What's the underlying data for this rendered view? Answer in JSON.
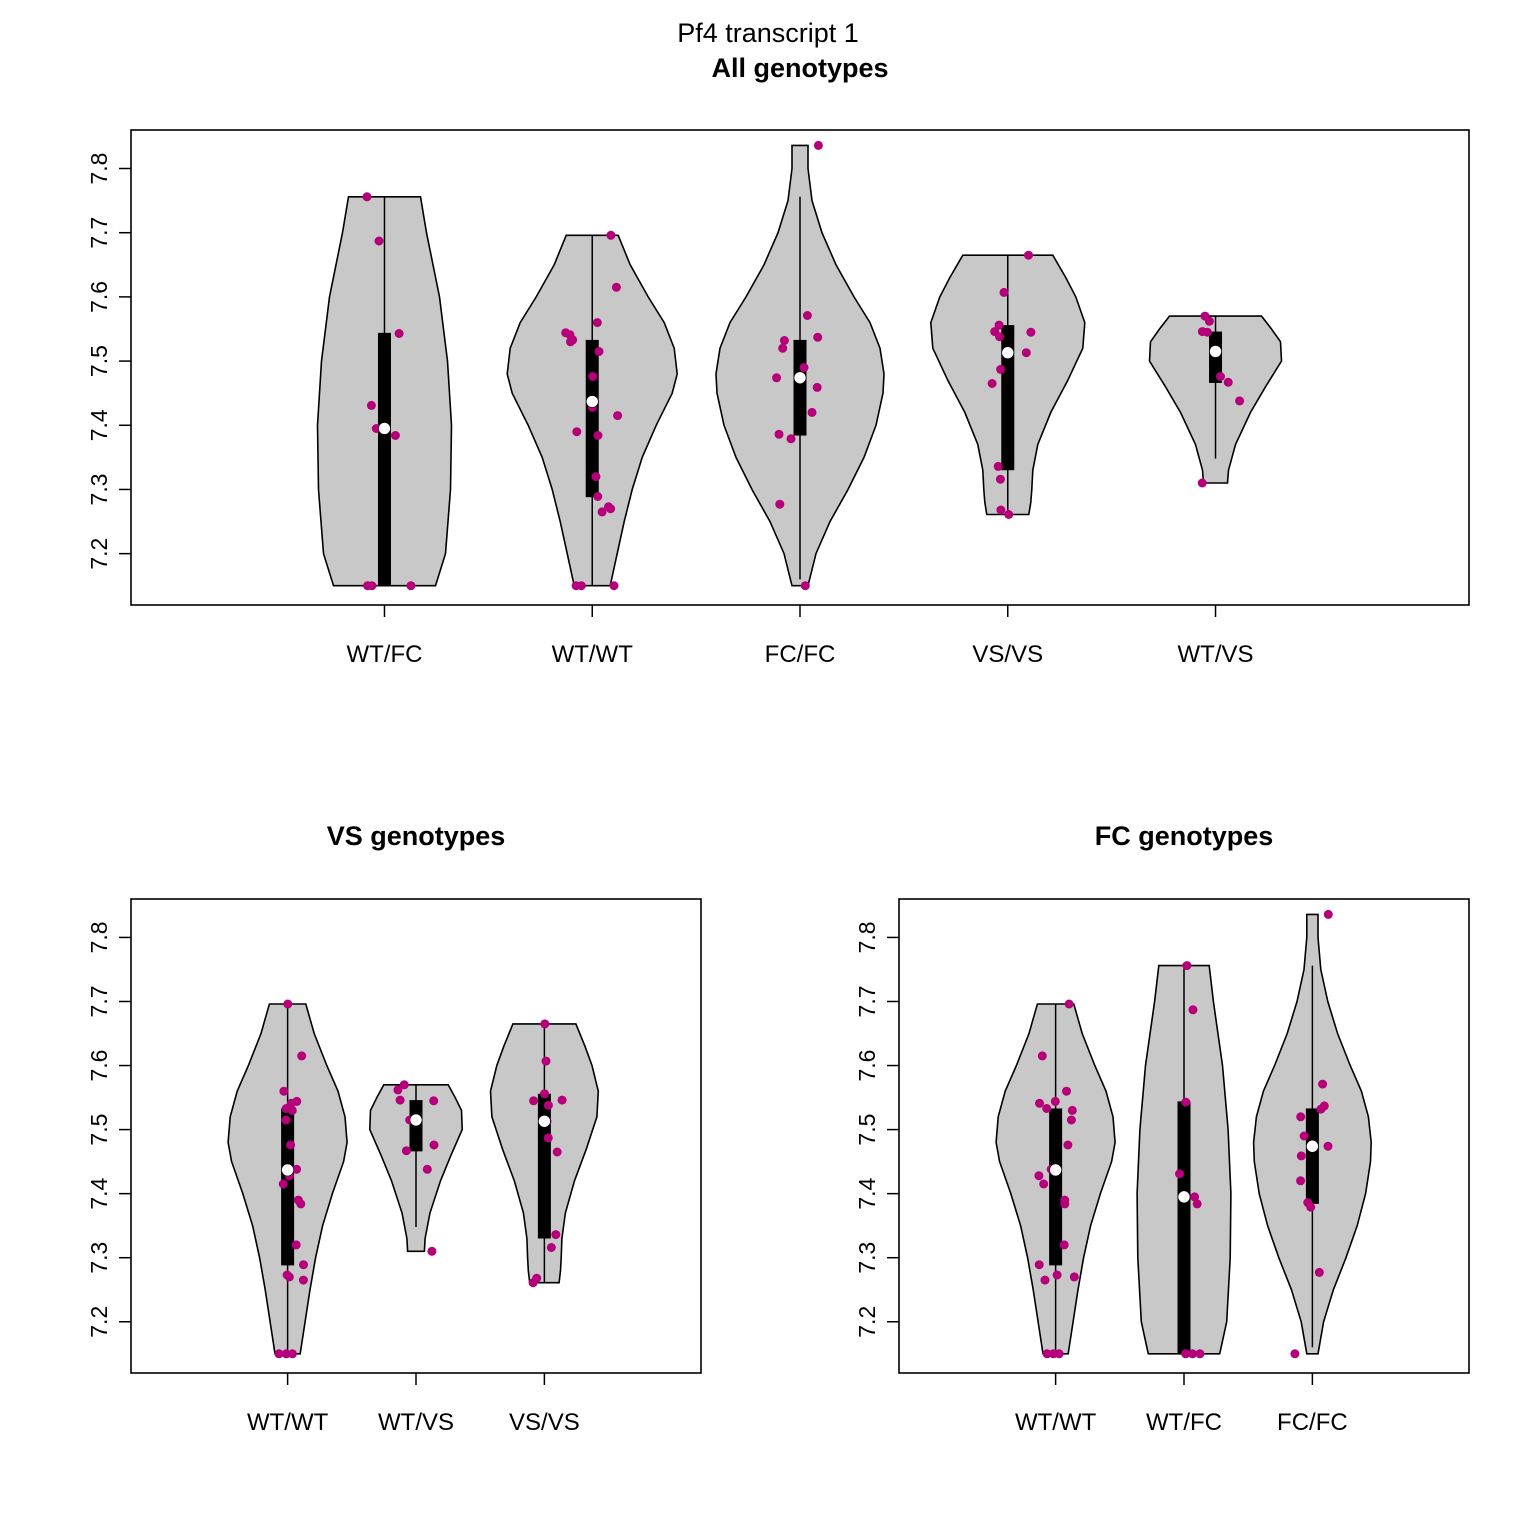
{
  "figure_title": "Pf4 transcript 1",
  "colors": {
    "violin_fill": "#c8c8c8",
    "violin_stroke": "#000000",
    "point": "#b5007a",
    "median": "#ffffff",
    "box": "#000000"
  },
  "chart_data": [
    {
      "type": "violin",
      "title": "All genotypes",
      "ylim": [
        7.12,
        7.86
      ],
      "yticks": [
        "7.2",
        "7.3",
        "7.4",
        "7.5",
        "7.6",
        "7.7",
        "7.8"
      ],
      "categories": [
        "WT/FC",
        "WT/WT",
        "FC/FC",
        "VS/VS",
        "WT/VS"
      ],
      "groups": [
        {
          "name": "WT/FC",
          "min": 7.15,
          "max": 7.756,
          "q1": 7.15,
          "median": 7.395,
          "q3": 7.544,
          "wlo": 7.15,
          "whi": 7.756,
          "profile": [
            [
              7.15,
              0.51
            ],
            [
              7.2,
              0.61
            ],
            [
              7.3,
              0.66
            ],
            [
              7.4,
              0.67
            ],
            [
              7.5,
              0.63
            ],
            [
              7.6,
              0.55
            ],
            [
              7.7,
              0.42
            ],
            [
              7.756,
              0.36
            ]
          ],
          "points": [
            7.756,
            7.687,
            7.543,
            7.431,
            7.395,
            7.384,
            7.15,
            7.15,
            7.15
          ]
        },
        {
          "name": "WT/WT",
          "min": 7.15,
          "max": 7.696,
          "q1": 7.288,
          "median": 7.437,
          "q3": 7.533,
          "wlo": 7.15,
          "whi": 7.696,
          "profile": [
            [
              7.15,
              0.18
            ],
            [
              7.2,
              0.25
            ],
            [
              7.25,
              0.32
            ],
            [
              7.3,
              0.4
            ],
            [
              7.35,
              0.5
            ],
            [
              7.4,
              0.64
            ],
            [
              7.45,
              0.8
            ],
            [
              7.48,
              0.85
            ],
            [
              7.52,
              0.82
            ],
            [
              7.56,
              0.72
            ],
            [
              7.6,
              0.56
            ],
            [
              7.65,
              0.38
            ],
            [
              7.696,
              0.26
            ]
          ],
          "points": [
            7.696,
            7.615,
            7.56,
            7.544,
            7.541,
            7.533,
            7.53,
            7.515,
            7.476,
            7.438,
            7.428,
            7.415,
            7.39,
            7.384,
            7.32,
            7.289,
            7.27,
            7.273,
            7.265,
            7.15,
            7.15,
            7.15
          ]
        },
        {
          "name": "FC/FC",
          "min": 7.15,
          "max": 7.836,
          "q1": 7.384,
          "median": 7.474,
          "q3": 7.533,
          "wlo": 7.16,
          "whi": 7.756,
          "profile": [
            [
              7.15,
              0.08
            ],
            [
              7.2,
              0.16
            ],
            [
              7.25,
              0.3
            ],
            [
              7.3,
              0.48
            ],
            [
              7.35,
              0.64
            ],
            [
              7.4,
              0.76
            ],
            [
              7.45,
              0.83
            ],
            [
              7.48,
              0.84
            ],
            [
              7.52,
              0.8
            ],
            [
              7.56,
              0.7
            ],
            [
              7.6,
              0.54
            ],
            [
              7.65,
              0.36
            ],
            [
              7.7,
              0.22
            ],
            [
              7.75,
              0.12
            ],
            [
              7.8,
              0.08
            ],
            [
              7.836,
              0.08
            ]
          ],
          "points": [
            7.836,
            7.571,
            7.537,
            7.532,
            7.52,
            7.49,
            7.474,
            7.459,
            7.42,
            7.386,
            7.379,
            7.277,
            7.15
          ]
        },
        {
          "name": "VS/VS",
          "min": 7.261,
          "max": 7.665,
          "q1": 7.33,
          "median": 7.513,
          "q3": 7.556,
          "wlo": 7.261,
          "whi": 7.665,
          "profile": [
            [
              7.261,
              0.21
            ],
            [
              7.28,
              0.23
            ],
            [
              7.3,
              0.24
            ],
            [
              7.33,
              0.25
            ],
            [
              7.37,
              0.3
            ],
            [
              7.42,
              0.43
            ],
            [
              7.47,
              0.6
            ],
            [
              7.52,
              0.75
            ],
            [
              7.56,
              0.77
            ],
            [
              7.6,
              0.68
            ],
            [
              7.63,
              0.58
            ],
            [
              7.665,
              0.45
            ]
          ],
          "points": [
            7.665,
            7.607,
            7.556,
            7.546,
            7.545,
            7.538,
            7.513,
            7.487,
            7.465,
            7.336,
            7.316,
            7.268,
            7.261
          ]
        },
        {
          "name": "WT/VS",
          "min": 7.31,
          "max": 7.57,
          "q1": 7.466,
          "median": 7.515,
          "q3": 7.546,
          "wlo": 7.348,
          "whi": 7.57,
          "profile": [
            [
              7.31,
              0.12
            ],
            [
              7.33,
              0.13
            ],
            [
              7.37,
              0.2
            ],
            [
              7.42,
              0.35
            ],
            [
              7.46,
              0.5
            ],
            [
              7.5,
              0.66
            ],
            [
              7.53,
              0.65
            ],
            [
              7.55,
              0.56
            ],
            [
              7.57,
              0.46
            ]
          ],
          "points": [
            7.57,
            7.562,
            7.546,
            7.545,
            7.515,
            7.476,
            7.467,
            7.438,
            7.31
          ]
        }
      ]
    },
    {
      "type": "violin",
      "title": "VS genotypes",
      "ylim": [
        7.12,
        7.86
      ],
      "yticks": [
        "7.2",
        "7.3",
        "7.4",
        "7.5",
        "7.6",
        "7.7",
        "7.8"
      ],
      "categories": [
        "WT/WT",
        "WT/VS",
        "VS/VS"
      ],
      "groups": [
        {
          "name": "WT/WT",
          "min": 7.15,
          "max": 7.696,
          "q1": 7.288,
          "median": 7.437,
          "q3": 7.533,
          "wlo": 7.15,
          "whi": 7.696,
          "profile": [
            [
              7.15,
              0.18
            ],
            [
              7.2,
              0.25
            ],
            [
              7.25,
              0.32
            ],
            [
              7.3,
              0.4
            ],
            [
              7.35,
              0.5
            ],
            [
              7.4,
              0.64
            ],
            [
              7.45,
              0.8
            ],
            [
              7.48,
              0.85
            ],
            [
              7.52,
              0.82
            ],
            [
              7.56,
              0.72
            ],
            [
              7.6,
              0.56
            ],
            [
              7.65,
              0.38
            ],
            [
              7.696,
              0.26
            ]
          ],
          "points": [
            7.696,
            7.615,
            7.56,
            7.544,
            7.541,
            7.533,
            7.53,
            7.515,
            7.476,
            7.438,
            7.428,
            7.415,
            7.39,
            7.384,
            7.32,
            7.289,
            7.27,
            7.273,
            7.265,
            7.15,
            7.15,
            7.15
          ]
        },
        {
          "name": "WT/VS",
          "min": 7.31,
          "max": 7.57,
          "q1": 7.466,
          "median": 7.515,
          "q3": 7.546,
          "wlo": 7.348,
          "whi": 7.57,
          "profile": [
            [
              7.31,
              0.12
            ],
            [
              7.33,
              0.13
            ],
            [
              7.37,
              0.2
            ],
            [
              7.42,
              0.35
            ],
            [
              7.46,
              0.5
            ],
            [
              7.5,
              0.66
            ],
            [
              7.53,
              0.65
            ],
            [
              7.55,
              0.56
            ],
            [
              7.57,
              0.46
            ]
          ],
          "points": [
            7.57,
            7.562,
            7.546,
            7.545,
            7.515,
            7.476,
            7.467,
            7.438,
            7.31
          ]
        },
        {
          "name": "VS/VS",
          "min": 7.261,
          "max": 7.665,
          "q1": 7.33,
          "median": 7.513,
          "q3": 7.556,
          "wlo": 7.261,
          "whi": 7.665,
          "profile": [
            [
              7.261,
              0.21
            ],
            [
              7.28,
              0.23
            ],
            [
              7.3,
              0.24
            ],
            [
              7.33,
              0.25
            ],
            [
              7.37,
              0.3
            ],
            [
              7.42,
              0.43
            ],
            [
              7.47,
              0.6
            ],
            [
              7.52,
              0.75
            ],
            [
              7.56,
              0.77
            ],
            [
              7.6,
              0.68
            ],
            [
              7.63,
              0.58
            ],
            [
              7.665,
              0.45
            ]
          ],
          "points": [
            7.665,
            7.607,
            7.556,
            7.546,
            7.545,
            7.538,
            7.513,
            7.487,
            7.465,
            7.336,
            7.316,
            7.268,
            7.261
          ]
        }
      ]
    },
    {
      "type": "violin",
      "title": "FC genotypes",
      "ylim": [
        7.12,
        7.86
      ],
      "yticks": [
        "7.2",
        "7.3",
        "7.4",
        "7.5",
        "7.6",
        "7.7",
        "7.8"
      ],
      "categories": [
        "WT/WT",
        "WT/FC",
        "FC/FC"
      ],
      "groups": [
        {
          "name": "WT/WT",
          "min": 7.15,
          "max": 7.696,
          "q1": 7.288,
          "median": 7.437,
          "q3": 7.533,
          "wlo": 7.15,
          "whi": 7.696,
          "profile": [
            [
              7.15,
              0.18
            ],
            [
              7.2,
              0.25
            ],
            [
              7.25,
              0.32
            ],
            [
              7.3,
              0.4
            ],
            [
              7.35,
              0.5
            ],
            [
              7.4,
              0.64
            ],
            [
              7.45,
              0.8
            ],
            [
              7.48,
              0.85
            ],
            [
              7.52,
              0.82
            ],
            [
              7.56,
              0.72
            ],
            [
              7.6,
              0.56
            ],
            [
              7.65,
              0.38
            ],
            [
              7.696,
              0.26
            ]
          ],
          "points": [
            7.696,
            7.615,
            7.56,
            7.544,
            7.541,
            7.533,
            7.53,
            7.515,
            7.476,
            7.438,
            7.428,
            7.415,
            7.39,
            7.384,
            7.32,
            7.289,
            7.27,
            7.273,
            7.265,
            7.15,
            7.15,
            7.15
          ]
        },
        {
          "name": "WT/FC",
          "min": 7.15,
          "max": 7.756,
          "q1": 7.15,
          "median": 7.395,
          "q3": 7.544,
          "wlo": 7.15,
          "whi": 7.756,
          "profile": [
            [
              7.15,
              0.51
            ],
            [
              7.2,
              0.61
            ],
            [
              7.3,
              0.66
            ],
            [
              7.4,
              0.67
            ],
            [
              7.5,
              0.63
            ],
            [
              7.6,
              0.55
            ],
            [
              7.7,
              0.42
            ],
            [
              7.756,
              0.36
            ]
          ],
          "points": [
            7.756,
            7.687,
            7.543,
            7.431,
            7.395,
            7.384,
            7.15,
            7.15,
            7.15
          ]
        },
        {
          "name": "FC/FC",
          "min": 7.15,
          "max": 7.836,
          "q1": 7.384,
          "median": 7.474,
          "q3": 7.533,
          "wlo": 7.16,
          "whi": 7.756,
          "profile": [
            [
              7.15,
              0.08
            ],
            [
              7.2,
              0.16
            ],
            [
              7.25,
              0.3
            ],
            [
              7.3,
              0.48
            ],
            [
              7.35,
              0.64
            ],
            [
              7.4,
              0.76
            ],
            [
              7.45,
              0.83
            ],
            [
              7.48,
              0.84
            ],
            [
              7.52,
              0.8
            ],
            [
              7.56,
              0.7
            ],
            [
              7.6,
              0.54
            ],
            [
              7.65,
              0.36
            ],
            [
              7.7,
              0.22
            ],
            [
              7.75,
              0.12
            ],
            [
              7.8,
              0.08
            ],
            [
              7.836,
              0.08
            ]
          ],
          "points": [
            7.836,
            7.571,
            7.537,
            7.532,
            7.52,
            7.49,
            7.474,
            7.459,
            7.42,
            7.386,
            7.379,
            7.277,
            7.15
          ]
        }
      ]
    }
  ]
}
